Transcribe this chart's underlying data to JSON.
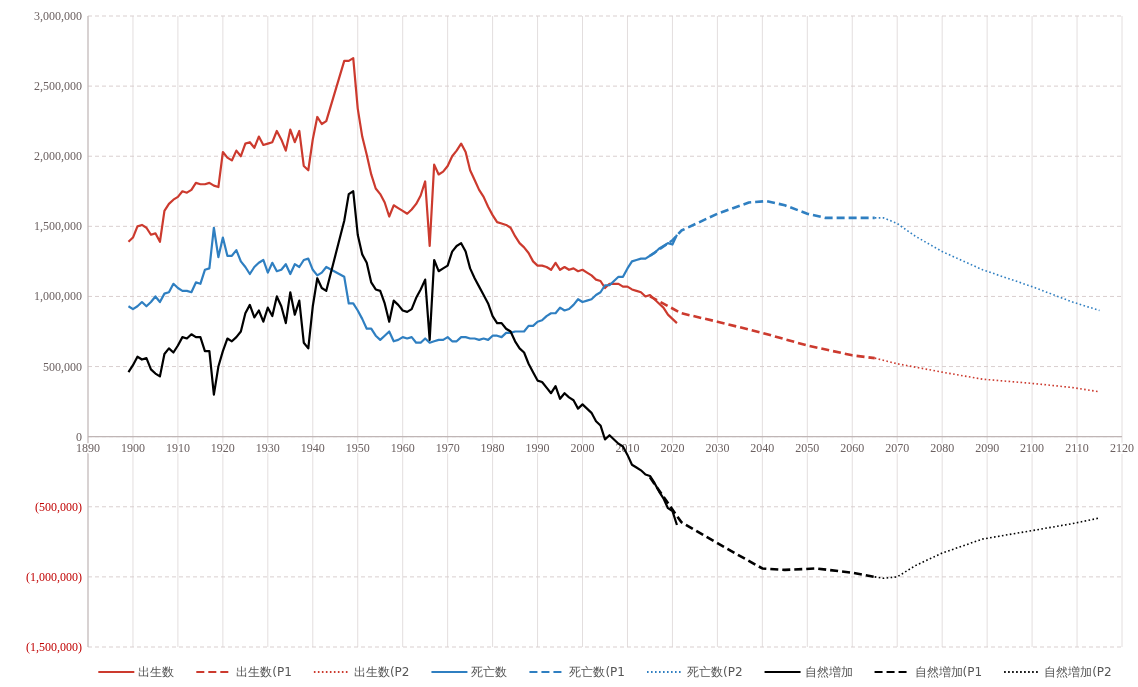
{
  "chart_data": {
    "type": "line",
    "x": [
      1899,
      1900,
      1901,
      1902,
      1903,
      1904,
      1905,
      1906,
      1907,
      1908,
      1909,
      1910,
      1911,
      1912,
      1913,
      1914,
      1915,
      1916,
      1917,
      1918,
      1919,
      1920,
      1921,
      1922,
      1923,
      1924,
      1925,
      1926,
      1927,
      1928,
      1929,
      1930,
      1931,
      1932,
      1933,
      1934,
      1935,
      1936,
      1937,
      1938,
      1939,
      1940,
      1941,
      1942,
      1943,
      1947,
      1948,
      1949,
      1950,
      1951,
      1952,
      1953,
      1954,
      1955,
      1956,
      1957,
      1958,
      1959,
      1960,
      1961,
      1962,
      1963,
      1964,
      1965,
      1966,
      1967,
      1968,
      1969,
      1970,
      1971,
      1972,
      1973,
      1974,
      1975,
      1976,
      1977,
      1978,
      1979,
      1980,
      1981,
      1982,
      1983,
      1984,
      1985,
      1986,
      1987,
      1988,
      1989,
      1990,
      1991,
      1992,
      1993,
      1994,
      1995,
      1996,
      1997,
      1998,
      1999,
      2000,
      2001,
      2002,
      2003,
      2004,
      2005,
      2006,
      2007,
      2008,
      2009,
      2010,
      2011,
      2012,
      2013,
      2014,
      2015,
      2016,
      2017,
      2018,
      2019,
      2020,
      2021
    ],
    "series": [
      {
        "name": "出生数",
        "color": "#cc3a2e",
        "line_style": "solid",
        "values": [
          1390000,
          1420000,
          1500000,
          1510000,
          1490000,
          1440000,
          1450000,
          1390000,
          1610000,
          1660000,
          1690000,
          1710000,
          1750000,
          1740000,
          1760000,
          1810000,
          1800000,
          1800000,
          1810000,
          1790000,
          1780000,
          2030000,
          1990000,
          1970000,
          2040000,
          2000000,
          2090000,
          2100000,
          2060000,
          2140000,
          2080000,
          2090000,
          2100000,
          2180000,
          2120000,
          2040000,
          2190000,
          2100000,
          2180000,
          1930000,
          1900000,
          2120000,
          2280000,
          2230000,
          2250000,
          2680000,
          2680000,
          2700000,
          2340000,
          2140000,
          2010000,
          1870000,
          1770000,
          1730000,
          1670000,
          1570000,
          1650000,
          1630000,
          1610000,
          1590000,
          1620000,
          1660000,
          1720000,
          1820000,
          1360000,
          1940000,
          1870000,
          1890000,
          1930000,
          2000000,
          2040000,
          2090000,
          2030000,
          1900000,
          1830000,
          1760000,
          1710000,
          1640000,
          1580000,
          1530000,
          1520000,
          1510000,
          1490000,
          1430000,
          1380000,
          1350000,
          1310000,
          1250000,
          1220000,
          1220000,
          1210000,
          1190000,
          1240000,
          1190000,
          1210000,
          1190000,
          1200000,
          1180000,
          1190000,
          1170000,
          1150000,
          1120000,
          1110000,
          1060000,
          1090000,
          1090000,
          1090000,
          1070000,
          1070000,
          1050000,
          1040000,
          1030000,
          1000000,
          1010000,
          980000,
          950000,
          920000,
          870000,
          840000,
          810000
        ]
      },
      {
        "name": "出生数(P1",
        "color": "#cc3a2e",
        "line_style": "dashed",
        "x": [
          2015,
          2022,
          2030,
          2040,
          2050,
          2060,
          2065
        ],
        "values": [
          1000000,
          880000,
          820000,
          740000,
          650000,
          580000,
          560000
        ]
      },
      {
        "name": "出生数(P2",
        "color": "#cc3a2e",
        "line_style": "dotted",
        "x": [
          2065,
          2070,
          2080,
          2089,
          2100,
          2109,
          2115
        ],
        "values": [
          560000,
          520000,
          460000,
          410000,
          380000,
          350000,
          320000
        ]
      },
      {
        "name": "死亡数",
        "color": "#2f7fc1",
        "line_style": "solid",
        "values": [
          930000,
          910000,
          930000,
          960000,
          930000,
          960000,
          1000000,
          960000,
          1020000,
          1030000,
          1090000,
          1060000,
          1040000,
          1040000,
          1030000,
          1100000,
          1090000,
          1190000,
          1200000,
          1490000,
          1280000,
          1420000,
          1290000,
          1290000,
          1330000,
          1250000,
          1210000,
          1160000,
          1210000,
          1240000,
          1260000,
          1170000,
          1240000,
          1180000,
          1190000,
          1230000,
          1160000,
          1230000,
          1210000,
          1260000,
          1270000,
          1190000,
          1150000,
          1170000,
          1210000,
          1140000,
          950000,
          950000,
          900000,
          840000,
          770000,
          770000,
          720000,
          690000,
          720000,
          750000,
          680000,
          690000,
          710000,
          700000,
          710000,
          670000,
          670000,
          700000,
          670000,
          680000,
          690000,
          690000,
          710000,
          680000,
          680000,
          710000,
          710000,
          700000,
          700000,
          690000,
          700000,
          690000,
          720000,
          720000,
          710000,
          740000,
          740000,
          750000,
          750000,
          750000,
          790000,
          790000,
          820000,
          830000,
          860000,
          880000,
          880000,
          920000,
          900000,
          910000,
          940000,
          980000,
          960000,
          970000,
          980000,
          1010000,
          1030000,
          1080000,
          1080000,
          1110000,
          1140000,
          1140000,
          1200000,
          1250000,
          1260000,
          1270000,
          1270000,
          1290000,
          1310000,
          1340000,
          1360000,
          1380000,
          1370000,
          1440000
        ]
      },
      {
        "name": "死亡数(P1",
        "color": "#2f7fc1",
        "line_style": "dashed",
        "x": [
          2015,
          2020,
          2022,
          2030,
          2037,
          2041,
          2045,
          2050,
          2054,
          2065
        ],
        "values": [
          1290000,
          1400000,
          1470000,
          1590000,
          1670000,
          1680000,
          1650000,
          1590000,
          1560000,
          1560000
        ]
      },
      {
        "name": "死亡数(P2",
        "color": "#2f7fc1",
        "line_style": "dotted",
        "x": [
          2065,
          2067,
          2070,
          2074,
          2080,
          2089,
          2100,
          2109,
          2115
        ],
        "values": [
          1560000,
          1560000,
          1520000,
          1430000,
          1320000,
          1190000,
          1070000,
          960000,
          900000
        ]
      },
      {
        "name": "自然増加",
        "color": "#000000",
        "line_style": "solid",
        "values": [
          460000,
          510000,
          570000,
          550000,
          560000,
          480000,
          450000,
          430000,
          590000,
          630000,
          600000,
          650000,
          710000,
          700000,
          730000,
          710000,
          710000,
          610000,
          610000,
          300000,
          500000,
          610000,
          700000,
          680000,
          710000,
          750000,
          880000,
          940000,
          850000,
          900000,
          820000,
          920000,
          860000,
          1000000,
          930000,
          810000,
          1030000,
          870000,
          970000,
          670000,
          630000,
          930000,
          1130000,
          1060000,
          1040000,
          1540000,
          1730000,
          1750000,
          1440000,
          1300000,
          1240000,
          1100000,
          1050000,
          1040000,
          950000,
          820000,
          970000,
          940000,
          900000,
          890000,
          910000,
          990000,
          1050000,
          1120000,
          690000,
          1260000,
          1180000,
          1200000,
          1220000,
          1320000,
          1360000,
          1380000,
          1320000,
          1200000,
          1130000,
          1070000,
          1010000,
          950000,
          860000,
          810000,
          810000,
          770000,
          750000,
          680000,
          630000,
          600000,
          520000,
          460000,
          400000,
          390000,
          350000,
          310000,
          360000,
          270000,
          310000,
          280000,
          260000,
          200000,
          230000,
          200000,
          170000,
          110000,
          80000,
          -20000,
          10000,
          -20000,
          -50000,
          -70000,
          -130000,
          -200000,
          -220000,
          -240000,
          -270000,
          -280000,
          -330000,
          -390000,
          -440000,
          -510000,
          -530000,
          -630000
        ]
      },
      {
        "name": "自然増加(P1",
        "color": "#000000",
        "line_style": "dashed",
        "x": [
          2015,
          2020,
          2022,
          2030,
          2040,
          2045,
          2052,
          2060,
          2065
        ],
        "values": [
          -290000,
          -520000,
          -610000,
          -760000,
          -940000,
          -950000,
          -940000,
          -970000,
          -1000000
        ]
      },
      {
        "name": "自然増加(P2",
        "color": "#000000",
        "line_style": "dotted",
        "x": [
          2065,
          2067,
          2070,
          2074,
          2080,
          2089,
          2100,
          2109,
          2115
        ],
        "values": [
          -1000000,
          -1010000,
          -1000000,
          -920000,
          -830000,
          -730000,
          -670000,
          -620000,
          -580000
        ]
      }
    ],
    "xlim": [
      1890,
      2120
    ],
    "xticks": [
      1890,
      1900,
      1910,
      1920,
      1930,
      1940,
      1950,
      1960,
      1970,
      1980,
      1990,
      2000,
      2010,
      2020,
      2030,
      2040,
      2050,
      2060,
      2070,
      2080,
      2090,
      2100,
      2110,
      2120
    ],
    "ylim": [
      -1500000,
      3000000
    ],
    "yticks": [
      {
        "value": -1500000,
        "label": "(1,500,000)"
      },
      {
        "value": -1000000,
        "label": "(1,000,000)"
      },
      {
        "value": -500000,
        "label": "(500,000)"
      },
      {
        "value": 0,
        "label": "0"
      },
      {
        "value": 500000,
        "label": "500,000"
      },
      {
        "value": 1000000,
        "label": "1,000,000"
      },
      {
        "value": 1500000,
        "label": "1,500,000"
      },
      {
        "value": 2000000,
        "label": "2,000,000"
      },
      {
        "value": 2500000,
        "label": "2,500,000"
      },
      {
        "value": 3000000,
        "label": "3,000,000"
      }
    ],
    "grid": true,
    "legend": "bottom"
  }
}
